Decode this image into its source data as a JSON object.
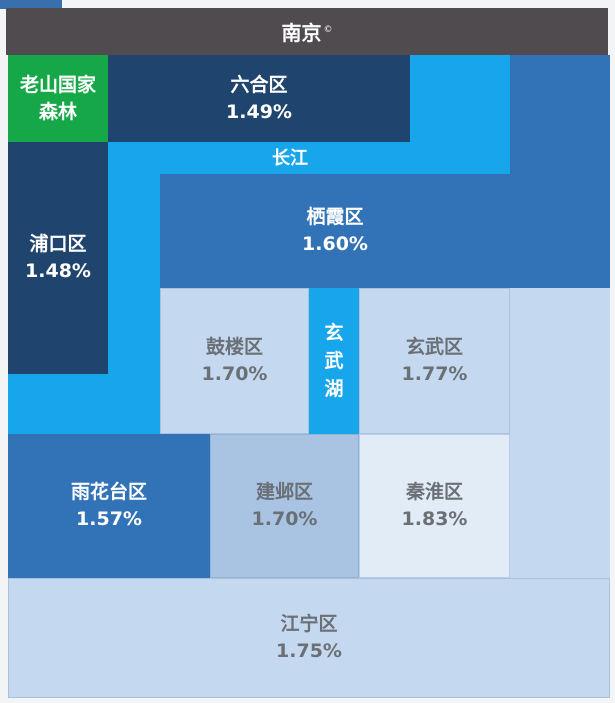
{
  "title": "南京",
  "title_mark": "©",
  "colors": {
    "river": "#17a5ec",
    "dark_blue": "#1f446d",
    "medium_blue": "#3273b8",
    "pale_blue": "#c4d9ef",
    "green": "#16a748",
    "title_bar": "#4f4b4e"
  },
  "regions": {
    "laoshan": {
      "name": "老山国家森林",
      "line1": "老山国家",
      "line2": "森林"
    },
    "liuhe": {
      "name": "六合区",
      "rate": "1.49%"
    },
    "pukou": {
      "name": "浦口区",
      "rate": "1.48%"
    },
    "qixia": {
      "name": "栖霞区",
      "rate": "1.60%"
    },
    "gulou": {
      "name": "鼓楼区",
      "rate": "1.70%"
    },
    "xuanwu": {
      "name": "玄武区",
      "rate": "1.77%"
    },
    "yuhuatai": {
      "name": "雨花台区",
      "rate": "1.57%"
    },
    "jianye": {
      "name": "建邺区",
      "rate": "1.70%"
    },
    "qinhuai": {
      "name": "秦淮区",
      "rate": "1.83%"
    },
    "jiangning": {
      "name": "江宁区",
      "rate": "1.75%"
    }
  },
  "water": {
    "changjiang": "长江",
    "xuanwu_lake": [
      "玄",
      "武",
      "湖"
    ]
  }
}
